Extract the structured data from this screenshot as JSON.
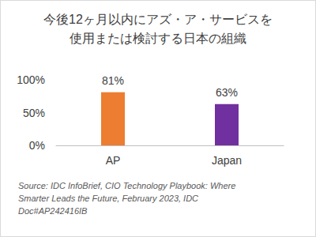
{
  "chart_data": {
    "type": "bar",
    "title": "今後12ヶ月以内にアズ・ア・サービスを使用または検討する日本の組織",
    "categories": [
      "AP",
      "Japan"
    ],
    "values": [
      81,
      63
    ],
    "value_labels": [
      "81%",
      "63%"
    ],
    "colors": [
      "#ed7d31",
      "#7030a0"
    ],
    "ylim": [
      0,
      100
    ],
    "yticks": [
      {
        "value": 0,
        "label": "0%"
      },
      {
        "value": 50,
        "label": "50%"
      },
      {
        "value": 100,
        "label": "100%"
      }
    ],
    "grid": false,
    "data_labels": true,
    "annotations": [
      "Source: IDC InfoBrief, CIO Technology Playbook: Where Smarter Leads the Future, February 2023, IDC Doc#AP242416IB"
    ]
  }
}
